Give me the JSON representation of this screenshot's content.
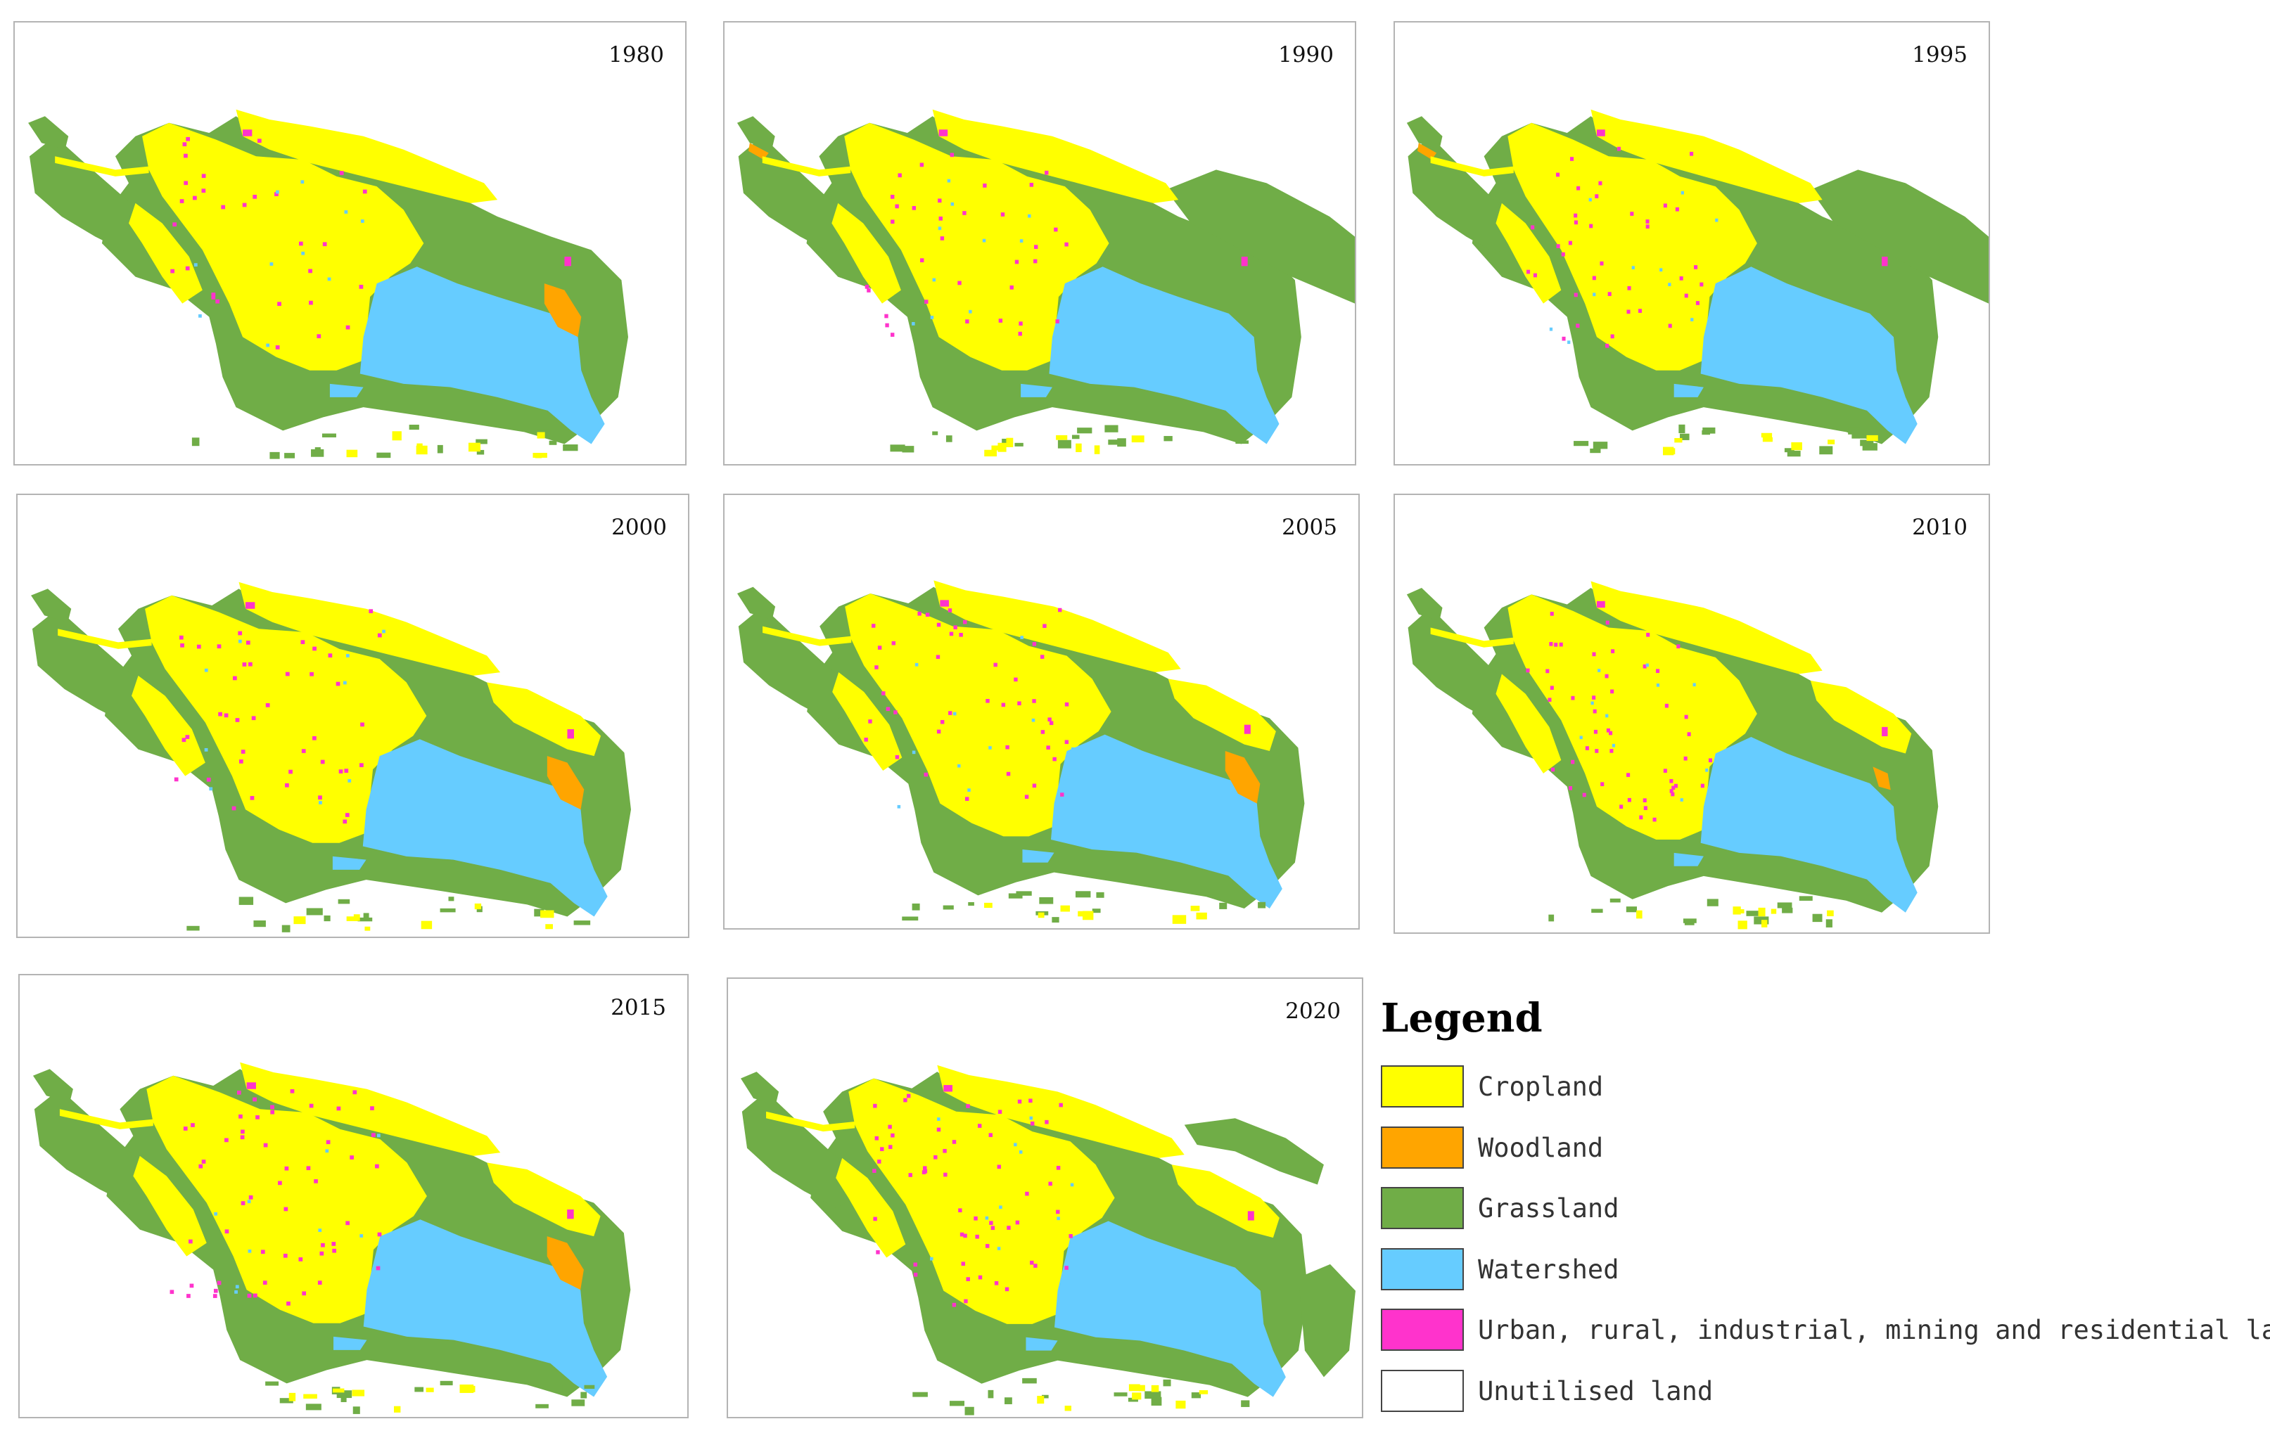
{
  "panels": [
    {
      "year": "1980",
      "variant": 0
    },
    {
      "year": "1990",
      "variant": 1
    },
    {
      "year": "1995",
      "variant": 2
    },
    {
      "year": "2000",
      "variant": 3
    },
    {
      "year": "2005",
      "variant": 4
    },
    {
      "year": "2010",
      "variant": 5
    },
    {
      "year": "2015",
      "variant": 6
    },
    {
      "year": "2020",
      "variant": 7
    }
  ],
  "legend": {
    "title": "Legend",
    "items": [
      {
        "label": "Cropland",
        "color": "#ffff00"
      },
      {
        "label": "Woodland",
        "color": "#ffa500"
      },
      {
        "label": "Grassland",
        "color": "#70ad47"
      },
      {
        "label": "Watershed",
        "color": "#66ccff"
      },
      {
        "label": "Urban, rural, industrial, mining and residential land",
        "color": "#ff33cc"
      },
      {
        "label": "Unutilised land",
        "color": "#ffffff"
      }
    ]
  }
}
